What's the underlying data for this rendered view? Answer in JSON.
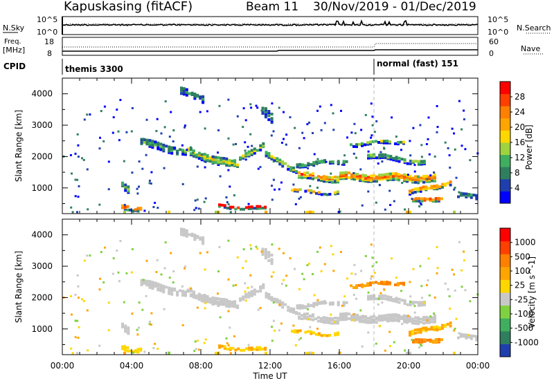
{
  "header": {
    "station": "Kapuskasing (fitACF)",
    "beam": "Beam 11",
    "date_range": "30/Nov/2019 - 01/Dec/2019"
  },
  "sky_panel": {
    "left_label": "N.Sky",
    "left_ticks": [
      "10^5",
      "10^0"
    ],
    "right_ticks": [
      "10^5",
      "10^0"
    ],
    "right_label": "N.Search"
  },
  "freq_panel": {
    "left_label_1": "Freq.",
    "left_label_2": "[MHz]",
    "left_ticks": [
      "18",
      "8"
    ],
    "right_ticks": [
      "60",
      "0"
    ],
    "right_label": "Nave"
  },
  "cpid_panel": {
    "label": "CPID",
    "modes": [
      {
        "name": "themis 3300",
        "start_hour": 0
      },
      {
        "name": "normal (fast) 151",
        "start_hour": 18
      }
    ]
  },
  "chart_data": [
    {
      "type": "heatmap",
      "parameter": "Power",
      "ylabel": "Slant Range [km]",
      "xlabel": "Time UT",
      "x_range_hours": [
        0,
        24
      ],
      "ylim": [
        180,
        4500
      ],
      "y_ticks": [
        "1000",
        "2000",
        "3000",
        "4000"
      ],
      "x_ticks": [
        "00:00",
        "04:00",
        "08:00",
        "12:00",
        "16:00",
        "20:00",
        "00:00"
      ],
      "colorbar": {
        "label": "Power [dB]",
        "tick_labels": [
          "4",
          "8",
          "12",
          "16",
          "20",
          "24",
          "28"
        ],
        "colors": [
          "#0000ff",
          "#1f3fae",
          "#2f7f5f",
          "#3fae5f",
          "#9fd23f",
          "#ffd700",
          "#ffa500",
          "#ff7f00",
          "#ff3f00",
          "#ff0000"
        ]
      }
    },
    {
      "type": "heatmap",
      "parameter": "Velocity",
      "ylabel": "Slant Range [km]",
      "xlabel": "Time UT",
      "x_range_hours": [
        0,
        24
      ],
      "ylim": [
        180,
        4500
      ],
      "y_ticks": [
        "1000",
        "2000",
        "3000",
        "4000"
      ],
      "x_ticks": [
        "00:00",
        "04:00",
        "08:00",
        "12:00",
        "16:00",
        "20:00",
        "00:00"
      ],
      "colorbar": {
        "label": "Velocity [m s^-1]",
        "tick_labels": [
          "1000",
          "500",
          "100",
          "25",
          "-25",
          "-100",
          "-500",
          "-1000"
        ],
        "colors": [
          "#1f3fae",
          "#2f7f5f",
          "#3fae5f",
          "#7fd23f",
          "#c8c8c8",
          "#ffd700",
          "#ffa500",
          "#ff7f00",
          "#ff3f00",
          "#ff0000"
        ]
      }
    }
  ]
}
